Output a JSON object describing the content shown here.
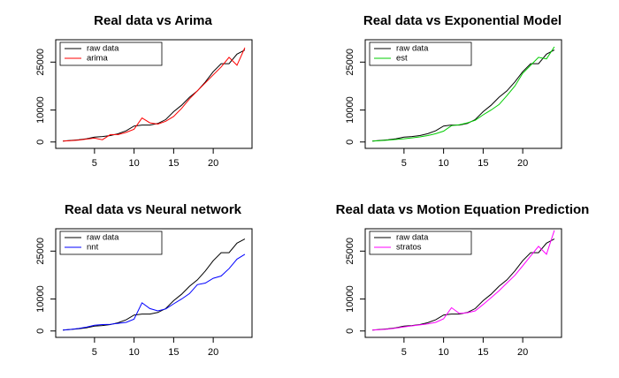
{
  "chart_data": [
    {
      "type": "line",
      "title": "Real data vs Arima",
      "x": [
        1,
        2,
        3,
        4,
        5,
        6,
        7,
        8,
        9,
        10,
        11,
        12,
        13,
        14,
        15,
        16,
        17,
        18,
        19,
        20,
        21,
        22,
        23,
        24
      ],
      "series": [
        {
          "name": "raw data",
          "color": "#000000",
          "values": [
            300,
            500,
            700,
            1000,
            1500,
            1700,
            2000,
            2600,
            3500,
            5000,
            5300,
            5300,
            5800,
            7000,
            9500,
            11500,
            14000,
            16000,
            18800,
            22000,
            24500,
            24500,
            27500,
            28800
          ]
        },
        {
          "name": "arima",
          "color": "#ff0000",
          "values": [
            300,
            400,
            600,
            900,
            1200,
            700,
            2300,
            2300,
            3000,
            4000,
            7500,
            6000,
            5600,
            6500,
            8000,
            10500,
            13500,
            16000,
            18500,
            21000,
            23500,
            26500,
            24000,
            29500
          ]
        }
      ],
      "xlim": [
        0.1,
        24.9
      ],
      "xticks": [
        5,
        10,
        15,
        20
      ],
      "ylim": [
        -2000,
        32000
      ],
      "yticks": [
        0,
        10000,
        25000
      ]
    },
    {
      "type": "line",
      "title": "Real data vs Exponential Model",
      "x": [
        1,
        2,
        3,
        4,
        5,
        6,
        7,
        8,
        9,
        10,
        11,
        12,
        13,
        14,
        15,
        16,
        17,
        18,
        19,
        20,
        21,
        22,
        23,
        24
      ],
      "series": [
        {
          "name": "raw data",
          "color": "#000000",
          "values": [
            300,
            500,
            700,
            1000,
            1500,
            1700,
            2000,
            2600,
            3500,
            5000,
            5300,
            5300,
            5800,
            7000,
            9500,
            11500,
            14000,
            16000,
            18800,
            22000,
            24500,
            24500,
            27500,
            28800
          ]
        },
        {
          "name": "est",
          "color": "#00cc00",
          "values": [
            300,
            400,
            600,
            800,
            1000,
            1300,
            1600,
            2000,
            2600,
            3400,
            5100,
            5400,
            6000,
            6800,
            8500,
            10000,
            11700,
            14500,
            17500,
            21500,
            24000,
            26500,
            26000,
            29800
          ]
        }
      ],
      "xlim": [
        0.1,
        24.9
      ],
      "xticks": [
        5,
        10,
        15,
        20
      ],
      "ylim": [
        -2000,
        32000
      ],
      "yticks": [
        0,
        10000,
        25000
      ]
    },
    {
      "type": "line",
      "title": "Real data vs Neural network",
      "x": [
        1,
        2,
        3,
        4,
        5,
        6,
        7,
        8,
        9,
        10,
        11,
        12,
        13,
        14,
        15,
        16,
        17,
        18,
        19,
        20,
        21,
        22,
        23,
        24
      ],
      "series": [
        {
          "name": "raw data",
          "color": "#000000",
          "values": [
            300,
            500,
            700,
            1000,
            1500,
            1700,
            2000,
            2600,
            3500,
            5000,
            5300,
            5300,
            5800,
            7000,
            9500,
            11500,
            14000,
            16000,
            18800,
            22000,
            24500,
            24500,
            27500,
            28800
          ]
        },
        {
          "name": "nnt",
          "color": "#0000ff",
          "values": [
            300,
            500,
            800,
            1200,
            1800,
            2000,
            2100,
            2400,
            2700,
            3700,
            8800,
            7000,
            6300,
            6900,
            8500,
            10000,
            11700,
            14500,
            15000,
            16500,
            17200,
            19500,
            22500,
            24000
          ]
        }
      ],
      "xlim": [
        0.1,
        24.9
      ],
      "xticks": [
        5,
        10,
        15,
        20
      ],
      "ylim": [
        -2000,
        32000
      ],
      "yticks": [
        0,
        10000,
        25000
      ]
    },
    {
      "type": "line",
      "title": "Real data vs Motion Equation Prediction",
      "x": [
        1,
        2,
        3,
        4,
        5,
        6,
        7,
        8,
        9,
        10,
        11,
        12,
        13,
        14,
        15,
        16,
        17,
        18,
        19,
        20,
        21,
        22,
        23,
        24
      ],
      "series": [
        {
          "name": "raw data",
          "color": "#000000",
          "values": [
            300,
            500,
            700,
            1000,
            1500,
            1700,
            2000,
            2600,
            3500,
            5000,
            5300,
            5300,
            5800,
            7000,
            9500,
            11500,
            14000,
            16000,
            18800,
            22000,
            24500,
            24500,
            27500,
            28800
          ]
        },
        {
          "name": "stratos",
          "color": "#ff00ff",
          "values": [
            300,
            400,
            600,
            900,
            1300,
            1600,
            1900,
            2200,
            2700,
            3800,
            7300,
            5500,
            5700,
            6300,
            8300,
            10400,
            12600,
            15000,
            17400,
            20400,
            23500,
            26500,
            24000,
            31500
          ]
        }
      ],
      "xlim": [
        0.1,
        24.9
      ],
      "xticks": [
        5,
        10,
        15,
        20
      ],
      "ylim": [
        -2000,
        32000
      ],
      "yticks": [
        0,
        10000,
        25000
      ]
    }
  ]
}
